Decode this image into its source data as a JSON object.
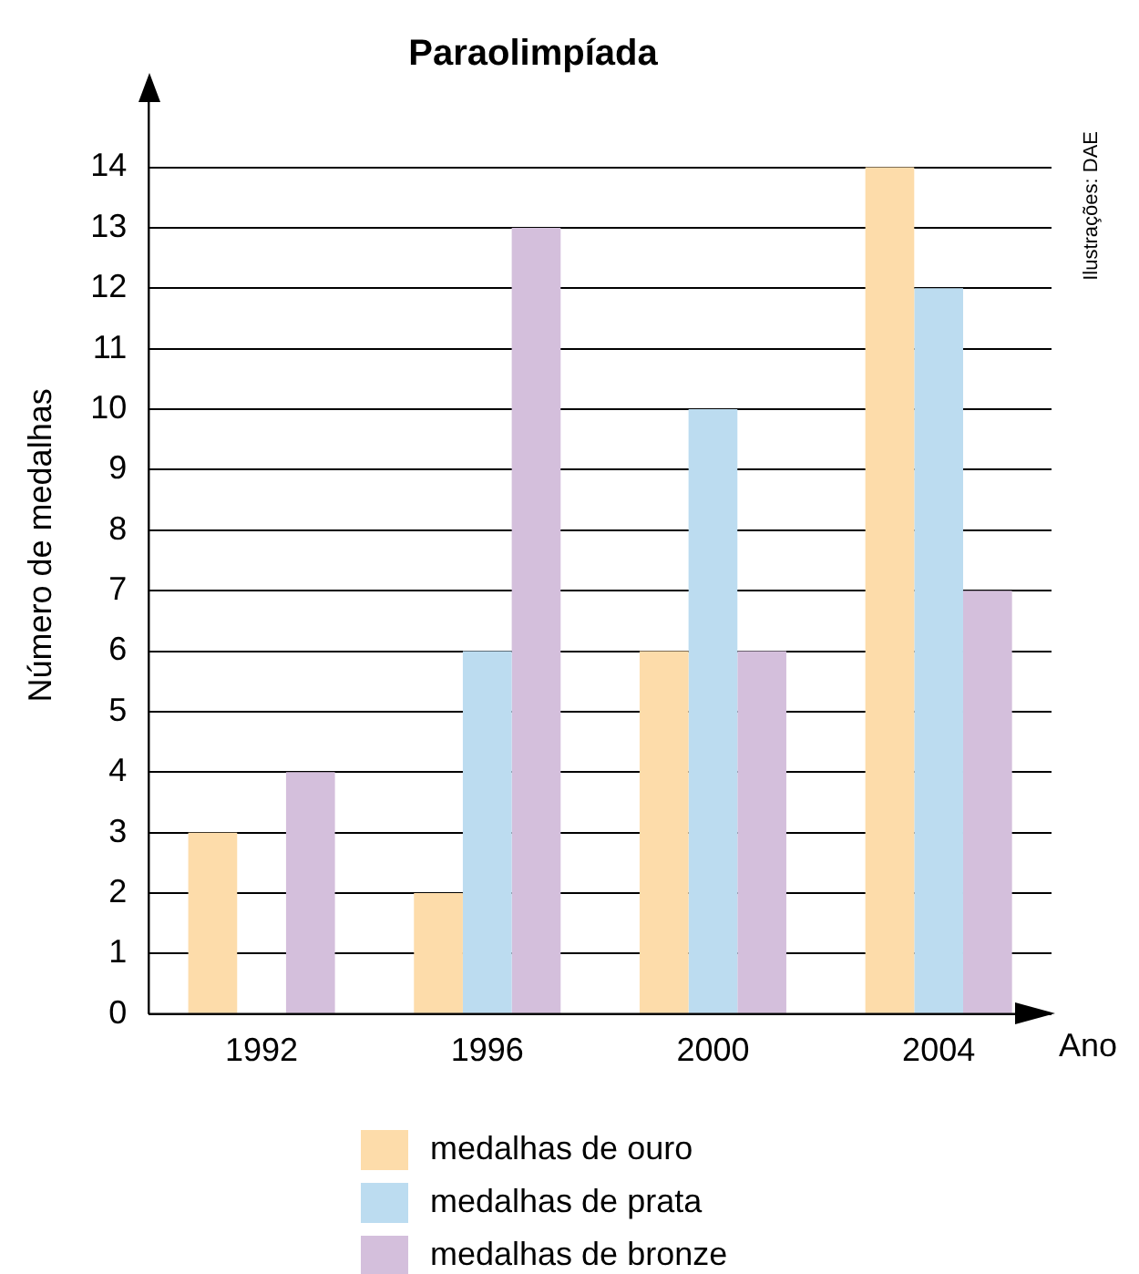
{
  "chart_data": {
    "type": "bar",
    "title": "Paraolimpíada",
    "xlabel": "Ano",
    "ylabel": "Número de medalhas",
    "categories": [
      "1992",
      "1996",
      "2000",
      "2004"
    ],
    "series": [
      {
        "name": "medalhas de ouro",
        "color": "#fddcaa",
        "values": [
          3,
          2,
          6,
          14
        ]
      },
      {
        "name": "medalhas de prata",
        "color": "#bcdcf0",
        "values": [
          null,
          6,
          10,
          12
        ]
      },
      {
        "name": "medalhas de bronze",
        "color": "#d4bfdc",
        "values": [
          4,
          13,
          6,
          7
        ]
      }
    ],
    "ylim": [
      0,
      15.5
    ],
    "yticks": [
      0,
      1,
      2,
      3,
      4,
      5,
      6,
      7,
      8,
      9,
      10,
      11,
      12,
      13,
      14
    ],
    "grid": "y",
    "legend": "bottom",
    "annotations": [
      "Ilustrações: DAE"
    ]
  }
}
